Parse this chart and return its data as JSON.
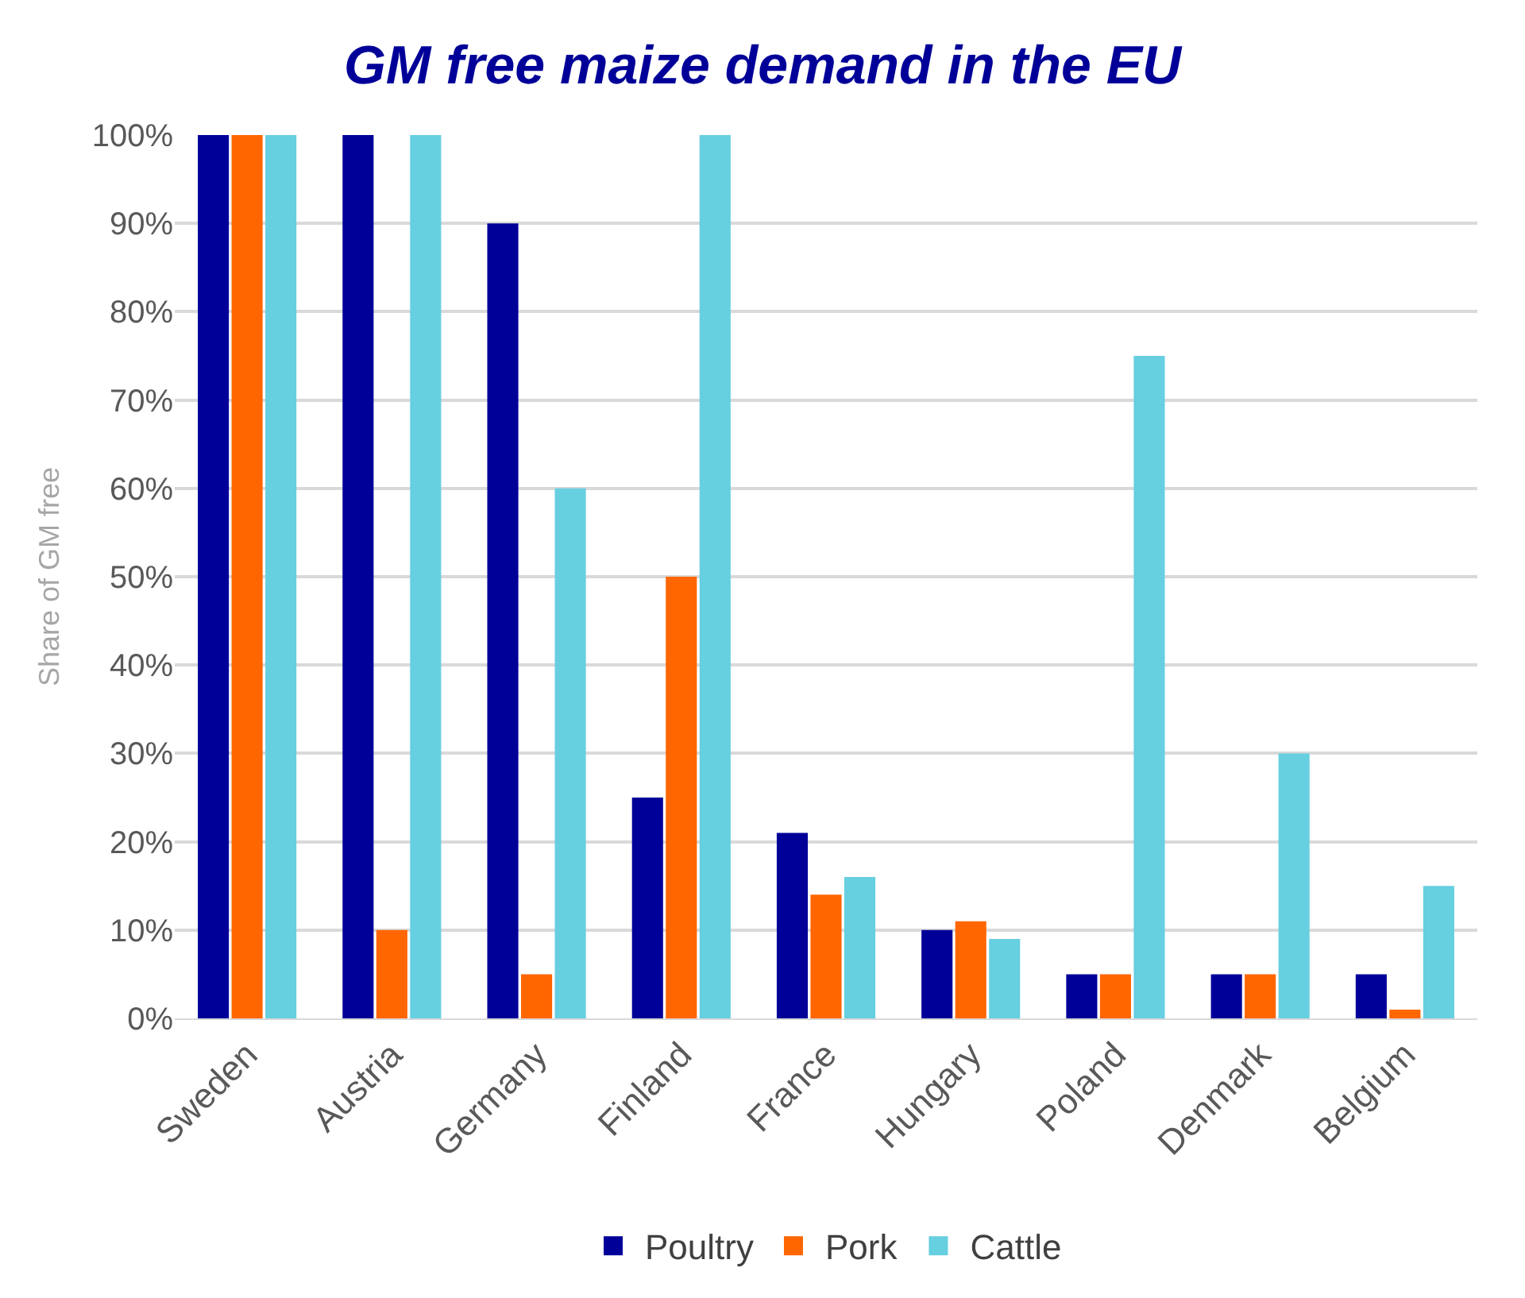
{
  "chart_data": {
    "type": "bar",
    "title": "GM free maize demand in the EU",
    "ylabel": "Share of GM free",
    "categories": [
      "Sweden",
      "Austria",
      "Germany",
      "Finland",
      "France",
      "Hungary",
      "Poland",
      "Denmark",
      "Belgium"
    ],
    "series": [
      {
        "name": "Poultry",
        "color": "#000099",
        "values": [
          100,
          100,
          90,
          25,
          21,
          10,
          5,
          5,
          5
        ]
      },
      {
        "name": "Pork",
        "color": "#ff6600",
        "values": [
          100,
          10,
          5,
          50,
          14,
          11,
          5,
          5,
          1
        ]
      },
      {
        "name": "Cattle",
        "color": "#66cfe0",
        "values": [
          100,
          100,
          60,
          100,
          16,
          9,
          75,
          30,
          15
        ]
      }
    ],
    "ylim": [
      0,
      100
    ],
    "yticks": [
      {
        "value": 0,
        "label": "0%"
      },
      {
        "value": 10,
        "label": "10%"
      },
      {
        "value": 20,
        "label": "20%"
      },
      {
        "value": 30,
        "label": "30%"
      },
      {
        "value": 40,
        "label": "40%"
      },
      {
        "value": 50,
        "label": "50%"
      },
      {
        "value": 60,
        "label": "60%"
      },
      {
        "value": 70,
        "label": "70%"
      },
      {
        "value": 80,
        "label": "80%"
      },
      {
        "value": 90,
        "label": "90%"
      },
      {
        "value": 100,
        "label": "100%"
      }
    ],
    "grid": "y",
    "legend": "bottom"
  }
}
